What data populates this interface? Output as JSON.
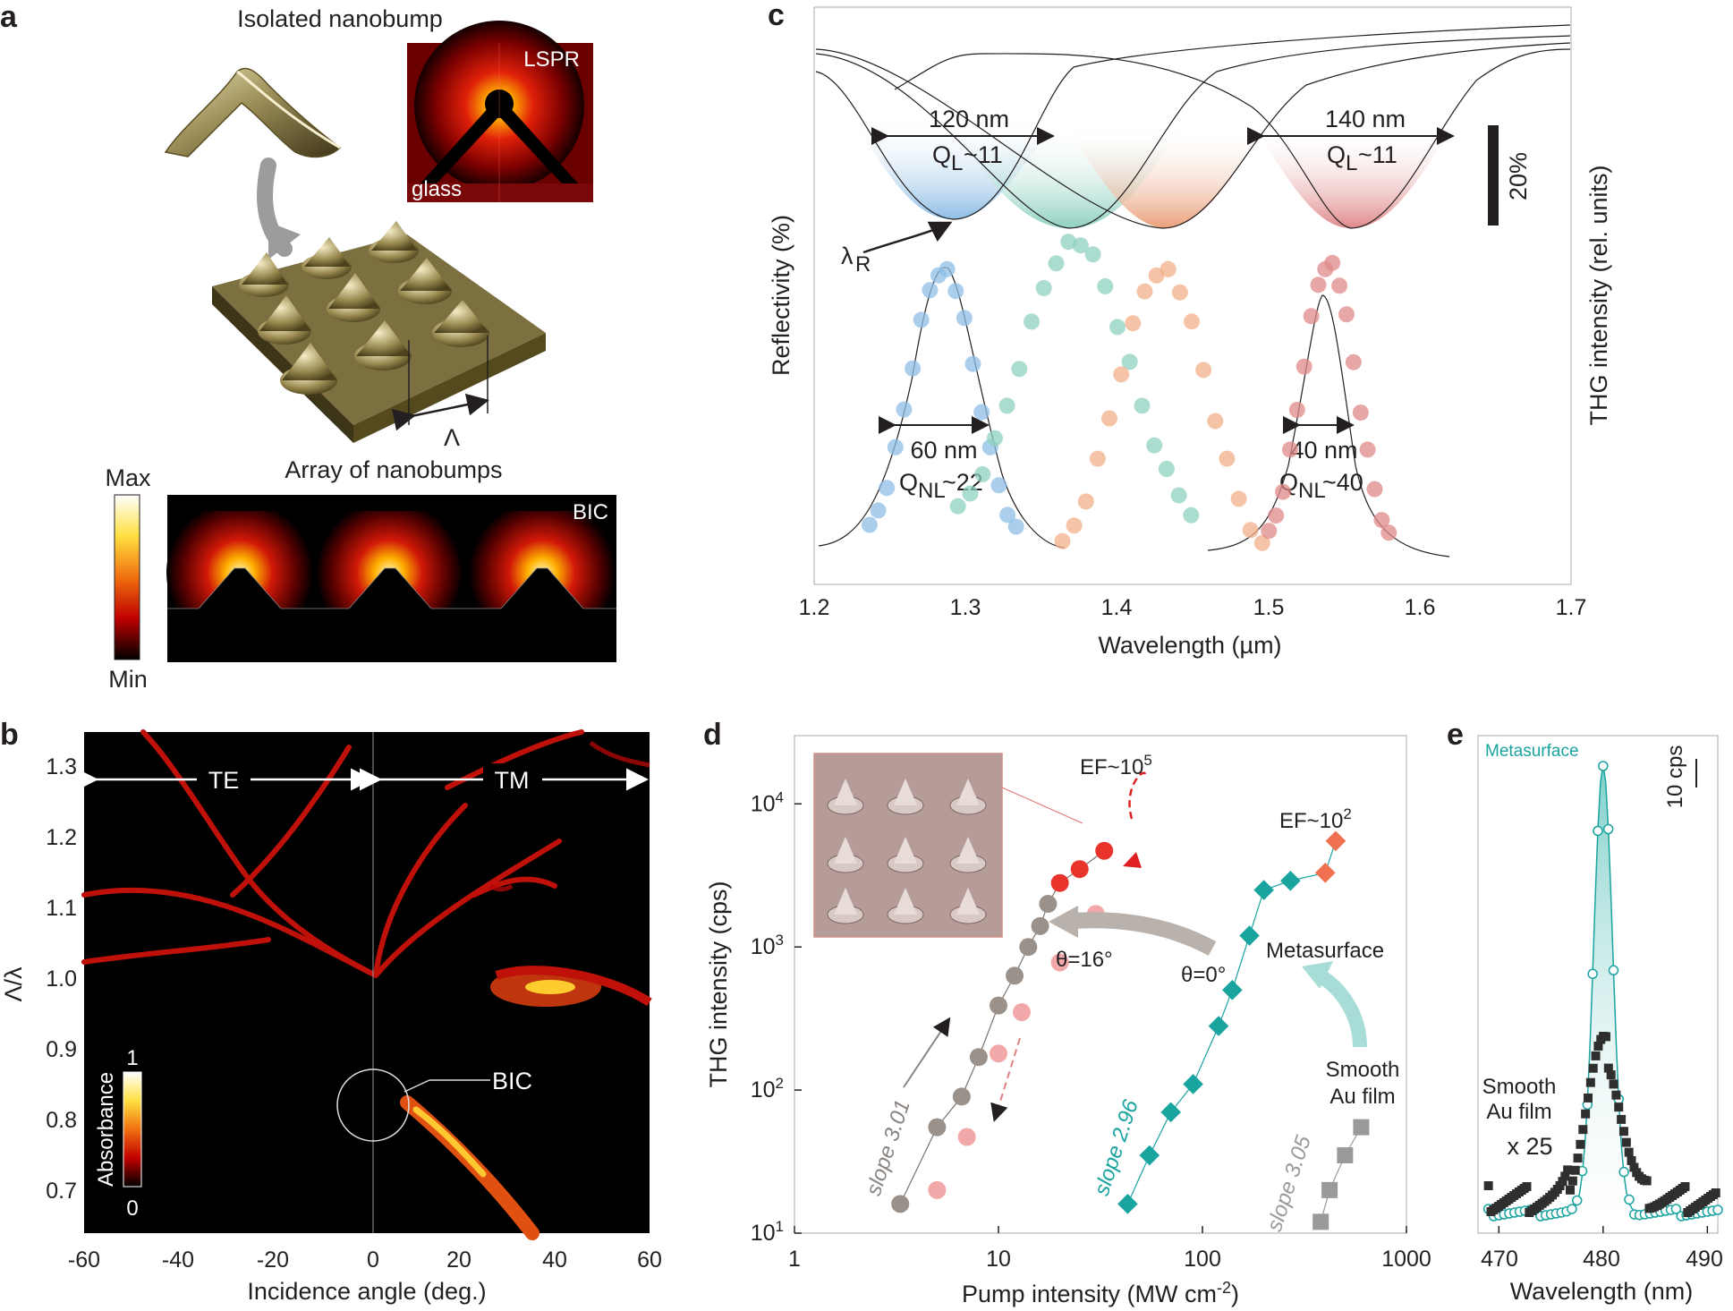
{
  "panels": {
    "a": {
      "label": "a",
      "title_isolated": "Isolated nanobump",
      "lspr_label": "LSPR",
      "glass_label": "glass",
      "period_symbol": "Λ",
      "title_array": "Array of nanobumps",
      "colorbar_max": "Max",
      "colorbar_min": "Min",
      "bic_label": "BIC"
    },
    "b": {
      "label": "b",
      "te_label": "TE",
      "tm_label": "TM",
      "bic_label": "BIC",
      "colorbar_title": "Absorbance",
      "colorbar_max": "1",
      "colorbar_min": "0",
      "xlabel": "Incidence angle (deg.)",
      "ylabel": "Λ/λ",
      "xticks": [
        "-60",
        "-40",
        "-20",
        "0",
        "20",
        "40",
        "60"
      ],
      "yticks": [
        "1.3",
        "1.2",
        "1.1",
        "1.0",
        "0.9",
        "0.8",
        "0.7"
      ]
    },
    "c": {
      "label": "c",
      "xlabel": "Wavelength (µm)",
      "ylabel_left": "Reflectivity (%)",
      "ylabel_right": "THG intensity (rel. units)",
      "xticks": [
        "1.2",
        "1.3",
        "1.4",
        "1.5",
        "1.6",
        "1.7"
      ],
      "scale_bar": "20%",
      "ann_120": "120 nm",
      "ann_140": "140 nm",
      "ql_left": "Q",
      "ql_sub": "L",
      "ql_val": "~11",
      "lambda_r": "λ",
      "lambda_r_sub": "R",
      "ann_60": "60 nm",
      "ann_40": "40 nm",
      "qnl": "Q",
      "qnl_sub": "NL",
      "qnl_22": "~22",
      "qnl_40": "~40"
    },
    "d": {
      "label": "d",
      "xlabel_main": "Pump intensity (MW cm",
      "xlabel_sup": "-2",
      "xlabel_end": ")",
      "ylabel": "THG intensity (cps)",
      "xticks": [
        "1",
        "10",
        "100",
        "1000"
      ],
      "ef_high": "EF~10",
      "ef_high_exp": "5",
      "ef_low": "EF~10",
      "ef_low_exp": "2",
      "theta16": "θ=16°",
      "theta0": "θ=0°",
      "metasurface": "Metasurface",
      "smooth1": "Smooth",
      "smooth2": "Au film",
      "slope1": "slope 3.01",
      "slope2": "slope 2.96",
      "slope3": "slope 3.05"
    },
    "e": {
      "label": "e",
      "xlabel": "Wavelength (nm)",
      "xticks": [
        "470",
        "480",
        "490"
      ],
      "metasurface": "Metasurface",
      "scale": "10 cps",
      "smooth1": "Smooth",
      "smooth2": "Au film",
      "times": "x 25"
    }
  },
  "chart_data": [
    {
      "type": "line",
      "panel": "c",
      "xlabel": "Wavelength (µm)",
      "ylabel": "Reflectivity (%) / THG intensity (rel. units)",
      "xlim": [
        1.2,
        1.7
      ],
      "series": [],
      "thg_peaks_um": [
        1.285,
        1.375,
        1.43,
        1.54
      ],
      "reflectivity_dips_um": [
        1.29,
        1.37,
        1.45,
        1.54
      ]
    },
    {
      "type": "scatter",
      "panel": "d",
      "xlabel": "Pump intensity (MW cm-2)",
      "ylabel": "THG intensity (cps)",
      "xlim": [
        1,
        1000
      ],
      "ylim": [
        10,
        30000
      ],
      "log_x": true,
      "log_y": true,
      "series": [
        {
          "name": "θ=16°",
          "x": [
            3.3,
            5,
            6.6,
            8,
            10,
            12,
            14,
            16,
            17.5,
            20,
            25,
            33
          ],
          "y": [
            16,
            55,
            90,
            170,
            390,
            630,
            1000,
            1400,
            2000,
            2800,
            3500,
            4700
          ]
        },
        {
          "name": "θ=0°",
          "x": [
            5,
            7,
            10,
            13,
            20,
            30
          ],
          "y": [
            20,
            47,
            180,
            350,
            780,
            1700
          ]
        },
        {
          "name": "Metasurface",
          "x": [
            43,
            55,
            70,
            90,
            120,
            140,
            170,
            200,
            270,
            400,
            450
          ],
          "y": [
            16,
            35,
            70,
            110,
            280,
            500,
            1200,
            2500,
            2900,
            3300,
            5500
          ]
        },
        {
          "name": "Smooth Au film",
          "x": [
            380,
            420,
            500,
            600
          ],
          "y": [
            12,
            20,
            35,
            55
          ]
        }
      ]
    },
    {
      "type": "line",
      "panel": "e",
      "xlabel": "Wavelength (nm)",
      "xlim": [
        468,
        491
      ],
      "series": [
        {
          "name": "Metasurface",
          "peak_nm": 480
        },
        {
          "name": "Smooth Au film x 25",
          "peak_nm": 480
        }
      ]
    }
  ]
}
